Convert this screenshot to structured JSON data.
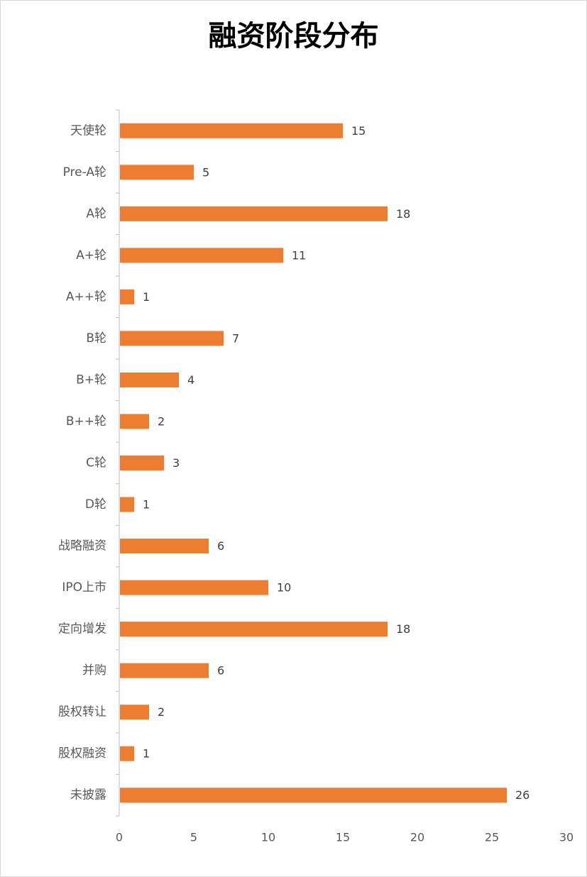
{
  "chart_data": {
    "type": "bar",
    "orientation": "horizontal",
    "title": "融资阶段分布",
    "categories": [
      "天使轮",
      "Pre-A轮",
      "A轮",
      "A+轮",
      "A++轮",
      "B轮",
      "B+轮",
      "B++轮",
      "C轮",
      "D轮",
      "战略融资",
      "IPO上市",
      "定向增发",
      "并购",
      "股权转让",
      "股权融资",
      "未披露"
    ],
    "values": [
      15,
      5,
      18,
      11,
      1,
      7,
      4,
      2,
      3,
      1,
      6,
      10,
      18,
      6,
      2,
      1,
      26
    ],
    "xlim": [
      0,
      30
    ],
    "xticks": [
      0,
      5,
      10,
      15,
      20,
      25,
      30
    ],
    "grid": false,
    "data_labels": true,
    "bar_color": "#ed7d31"
  }
}
